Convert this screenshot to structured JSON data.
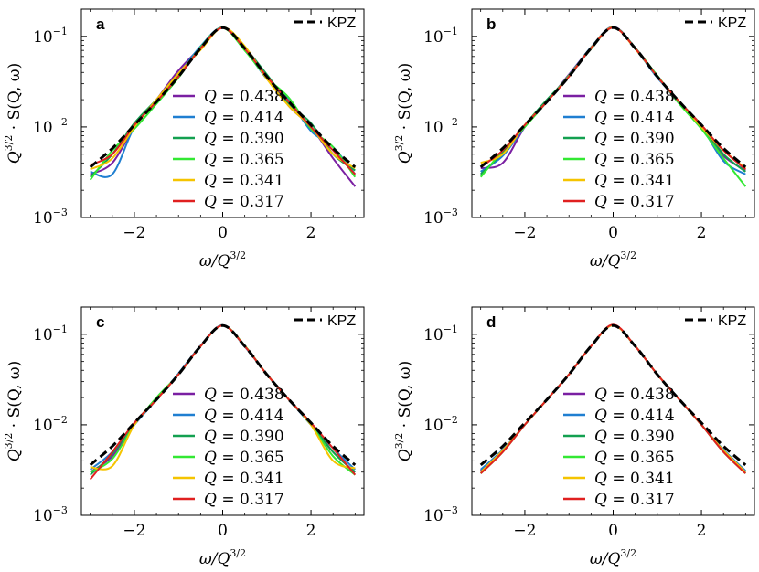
{
  "figure": {
    "ylabel_parts": [
      "Q",
      "3/2",
      "· S(Q, ω)"
    ],
    "xlabel_parts": [
      "ω/Q",
      "3/2"
    ],
    "kpz_label": "KPZ",
    "colors": {
      "kpz": "#000000",
      "series": [
        "#7a1fa2",
        "#1f7fd1",
        "#13a050",
        "#33e833",
        "#f5c400",
        "#e02020"
      ]
    }
  },
  "chart_data": [
    {
      "type": "line",
      "panel": "a",
      "legend": "top-right",
      "y_scale": "log",
      "xlim": [
        -3.2,
        3.2
      ],
      "ylim": [
        0.001,
        0.2
      ],
      "xticks": [
        -2,
        0,
        2
      ],
      "xtick_labels": [
        "−2",
        "0",
        "2"
      ],
      "yticks": [
        0.001,
        0.01,
        0.1
      ],
      "ytick_labels": [
        {
          "base": "10",
          "exp": "−3"
        },
        {
          "base": "10",
          "exp": "−2"
        },
        {
          "base": "10",
          "exp": "−1"
        }
      ],
      "x": [
        -3,
        -2.5,
        -2,
        -1.5,
        -1,
        -0.5,
        0,
        0.5,
        1,
        1.5,
        2,
        2.5,
        3
      ],
      "kpz": {
        "name": "KPZ",
        "values": [
          0.0036,
          0.0058,
          0.0105,
          0.019,
          0.036,
          0.074,
          0.125,
          0.074,
          0.036,
          0.019,
          0.0105,
          0.0058,
          0.0036
        ]
      },
      "series": [
        {
          "name": "Q = 0.438",
          "Q": "0.438",
          "values": [
            0.003,
            0.004,
            0.01,
            0.02,
            0.042,
            0.075,
            0.124,
            0.076,
            0.037,
            0.017,
            0.01,
            0.0045,
            0.0022
          ]
        },
        {
          "name": "Q = 0.414",
          "Q": "0.414",
          "values": [
            0.0032,
            0.003,
            0.01,
            0.019,
            0.038,
            0.078,
            0.125,
            0.072,
            0.034,
            0.02,
            0.009,
            0.006,
            0.003
          ]
        },
        {
          "name": "Q = 0.390",
          "Q": "0.390",
          "values": [
            0.0028,
            0.005,
            0.011,
            0.02,
            0.037,
            0.072,
            0.126,
            0.075,
            0.038,
            0.018,
            0.011,
            0.005,
            0.0033
          ]
        },
        {
          "name": "Q = 0.365",
          "Q": "0.365",
          "values": [
            0.0026,
            0.0055,
            0.0095,
            0.018,
            0.035,
            0.076,
            0.124,
            0.07,
            0.035,
            0.021,
            0.0095,
            0.006,
            0.0028
          ]
        },
        {
          "name": "Q = 0.341",
          "Q": "0.341",
          "values": [
            0.0034,
            0.0045,
            0.01,
            0.02,
            0.039,
            0.071,
            0.125,
            0.078,
            0.034,
            0.017,
            0.01,
            0.005,
            0.0035
          ]
        },
        {
          "name": "Q = 0.317",
          "Q": "0.317",
          "values": [
            0.0038,
            0.005,
            0.0105,
            0.019,
            0.036,
            0.074,
            0.124,
            0.073,
            0.036,
            0.019,
            0.01,
            0.0055,
            0.003
          ]
        }
      ]
    },
    {
      "type": "line",
      "panel": "b",
      "legend": "top-right",
      "y_scale": "log",
      "xlim": [
        -3.2,
        3.2
      ],
      "ylim": [
        0.001,
        0.2
      ],
      "xticks": [
        -2,
        0,
        2
      ],
      "xtick_labels": [
        "−2",
        "0",
        "2"
      ],
      "yticks": [
        0.001,
        0.01,
        0.1
      ],
      "ytick_labels": [
        {
          "base": "10",
          "exp": "−3"
        },
        {
          "base": "10",
          "exp": "−2"
        },
        {
          "base": "10",
          "exp": "−1"
        }
      ],
      "x": [
        -3,
        -2.5,
        -2,
        -1.5,
        -1,
        -0.5,
        0,
        0.5,
        1,
        1.5,
        2,
        2.5,
        3
      ],
      "kpz": {
        "name": "KPZ",
        "values": [
          0.0036,
          0.0058,
          0.0105,
          0.019,
          0.036,
          0.074,
          0.125,
          0.074,
          0.036,
          0.019,
          0.0105,
          0.0058,
          0.0036
        ]
      },
      "series": [
        {
          "name": "Q = 0.438",
          "Q": "0.438",
          "values": [
            0.0035,
            0.004,
            0.01,
            0.019,
            0.038,
            0.075,
            0.128,
            0.074,
            0.036,
            0.018,
            0.01,
            0.0048,
            0.0033
          ]
        },
        {
          "name": "Q = 0.414",
          "Q": "0.414",
          "values": [
            0.0032,
            0.0048,
            0.01,
            0.019,
            0.037,
            0.076,
            0.127,
            0.073,
            0.035,
            0.019,
            0.01,
            0.0042,
            0.003
          ]
        },
        {
          "name": "Q = 0.390",
          "Q": "0.390",
          "values": [
            0.003,
            0.0052,
            0.0105,
            0.02,
            0.036,
            0.074,
            0.126,
            0.075,
            0.036,
            0.019,
            0.0105,
            0.005,
            0.0032
          ]
        },
        {
          "name": "Q = 0.365",
          "Q": "0.365",
          "values": [
            0.0028,
            0.0055,
            0.01,
            0.019,
            0.037,
            0.073,
            0.125,
            0.074,
            0.037,
            0.018,
            0.0095,
            0.0045,
            0.0022
          ]
        },
        {
          "name": "Q = 0.341",
          "Q": "0.341",
          "values": [
            0.004,
            0.005,
            0.0105,
            0.019,
            0.036,
            0.075,
            0.126,
            0.073,
            0.036,
            0.019,
            0.01,
            0.0055,
            0.0035
          ]
        },
        {
          "name": "Q = 0.317",
          "Q": "0.317",
          "values": [
            0.0036,
            0.0055,
            0.0105,
            0.019,
            0.036,
            0.074,
            0.125,
            0.074,
            0.036,
            0.019,
            0.0105,
            0.0055,
            0.0034
          ]
        }
      ]
    },
    {
      "type": "line",
      "panel": "c",
      "legend": "top-right",
      "y_scale": "log",
      "xlim": [
        -3.2,
        3.2
      ],
      "ylim": [
        0.001,
        0.2
      ],
      "xticks": [
        -2,
        0,
        2
      ],
      "xtick_labels": [
        "−2",
        "0",
        "2"
      ],
      "yticks": [
        0.001,
        0.01,
        0.1
      ],
      "ytick_labels": [
        {
          "base": "10",
          "exp": "−3"
        },
        {
          "base": "10",
          "exp": "−2"
        },
        {
          "base": "10",
          "exp": "−1"
        }
      ],
      "x": [
        -3,
        -2.5,
        -2,
        -1.5,
        -1,
        -0.5,
        0,
        0.5,
        1,
        1.5,
        2,
        2.5,
        3
      ],
      "kpz": {
        "name": "KPZ",
        "values": [
          0.0036,
          0.0058,
          0.0105,
          0.019,
          0.036,
          0.074,
          0.125,
          0.074,
          0.036,
          0.019,
          0.0105,
          0.0058,
          0.0036
        ]
      },
      "series": [
        {
          "name": "Q = 0.438",
          "Q": "0.438",
          "values": [
            0.003,
            0.0045,
            0.01,
            0.019,
            0.036,
            0.074,
            0.126,
            0.074,
            0.036,
            0.019,
            0.01,
            0.005,
            0.003
          ]
        },
        {
          "name": "Q = 0.414",
          "Q": "0.414",
          "values": [
            0.0032,
            0.005,
            0.01,
            0.019,
            0.037,
            0.075,
            0.126,
            0.073,
            0.036,
            0.019,
            0.01,
            0.0055,
            0.0032
          ]
        },
        {
          "name": "Q = 0.390",
          "Q": "0.390",
          "values": [
            0.0028,
            0.0048,
            0.0105,
            0.019,
            0.036,
            0.074,
            0.125,
            0.074,
            0.036,
            0.019,
            0.0105,
            0.005,
            0.003
          ]
        },
        {
          "name": "Q = 0.365",
          "Q": "0.365",
          "values": [
            0.003,
            0.0042,
            0.01,
            0.02,
            0.036,
            0.074,
            0.125,
            0.075,
            0.036,
            0.019,
            0.01,
            0.0045,
            0.0028
          ]
        },
        {
          "name": "Q = 0.341",
          "Q": "0.341",
          "values": [
            0.0034,
            0.0035,
            0.01,
            0.019,
            0.036,
            0.074,
            0.125,
            0.074,
            0.036,
            0.019,
            0.01,
            0.004,
            0.0033
          ]
        },
        {
          "name": "Q = 0.317",
          "Q": "0.317",
          "values": [
            0.0025,
            0.005,
            0.0105,
            0.019,
            0.036,
            0.074,
            0.125,
            0.074,
            0.036,
            0.019,
            0.0105,
            0.0055,
            0.0028
          ]
        }
      ]
    },
    {
      "type": "line",
      "panel": "d",
      "legend": "top-right",
      "y_scale": "log",
      "xlim": [
        -3.2,
        3.2
      ],
      "ylim": [
        0.001,
        0.2
      ],
      "xticks": [
        -2,
        0,
        2
      ],
      "xtick_labels": [
        "−2",
        "0",
        "2"
      ],
      "yticks": [
        0.001,
        0.01,
        0.1
      ],
      "ytick_labels": [
        {
          "base": "10",
          "exp": "−3"
        },
        {
          "base": "10",
          "exp": "−2"
        },
        {
          "base": "10",
          "exp": "−1"
        }
      ],
      "x": [
        -3,
        -2.5,
        -2,
        -1.5,
        -1,
        -0.5,
        0,
        0.5,
        1,
        1.5,
        2,
        2.5,
        3
      ],
      "kpz": {
        "name": "KPZ",
        "values": [
          0.0036,
          0.0058,
          0.0105,
          0.019,
          0.036,
          0.074,
          0.125,
          0.074,
          0.036,
          0.019,
          0.0105,
          0.0058,
          0.0036
        ]
      },
      "series": [
        {
          "name": "Q = 0.438",
          "Q": "0.438",
          "values": [
            0.0031,
            0.0052,
            0.01,
            0.019,
            0.036,
            0.074,
            0.126,
            0.074,
            0.036,
            0.019,
            0.01,
            0.0052,
            0.003
          ]
        },
        {
          "name": "Q = 0.414",
          "Q": "0.414",
          "values": [
            0.0032,
            0.0053,
            0.01,
            0.019,
            0.036,
            0.074,
            0.126,
            0.074,
            0.036,
            0.019,
            0.01,
            0.0053,
            0.0031
          ]
        },
        {
          "name": "Q = 0.390",
          "Q": "0.390",
          "values": [
            0.003,
            0.0051,
            0.01,
            0.019,
            0.036,
            0.074,
            0.126,
            0.074,
            0.036,
            0.019,
            0.01,
            0.0051,
            0.003
          ]
        },
        {
          "name": "Q = 0.365",
          "Q": "0.365",
          "values": [
            0.0029,
            0.005,
            0.01,
            0.019,
            0.036,
            0.074,
            0.126,
            0.074,
            0.036,
            0.019,
            0.01,
            0.005,
            0.0029
          ]
        },
        {
          "name": "Q = 0.341",
          "Q": "0.341",
          "values": [
            0.003,
            0.0052,
            0.01,
            0.019,
            0.036,
            0.074,
            0.126,
            0.074,
            0.036,
            0.019,
            0.01,
            0.0052,
            0.003
          ]
        },
        {
          "name": "Q = 0.317",
          "Q": "0.317",
          "values": [
            0.0029,
            0.005,
            0.01,
            0.019,
            0.036,
            0.074,
            0.128,
            0.074,
            0.036,
            0.019,
            0.01,
            0.005,
            0.0029
          ]
        }
      ]
    }
  ]
}
